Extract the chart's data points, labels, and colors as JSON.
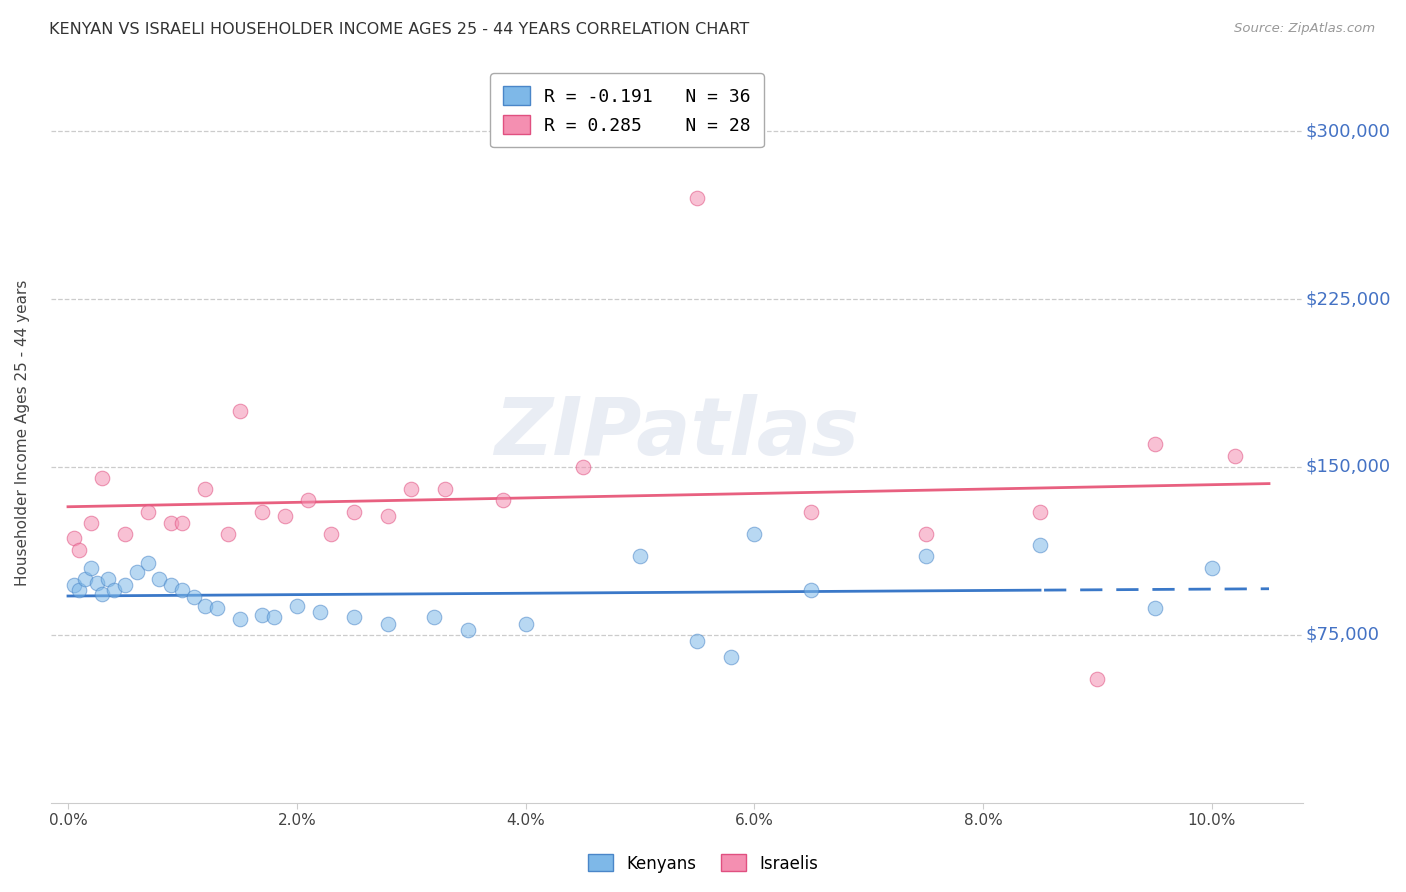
{
  "title": "KENYAN VS ISRAELI HOUSEHOLDER INCOME AGES 25 - 44 YEARS CORRELATION CHART",
  "source": "Source: ZipAtlas.com",
  "ylabel": "Householder Income Ages 25 - 44 years",
  "ytick_labels": [
    "$75,000",
    "$150,000",
    "$225,000",
    "$300,000"
  ],
  "ytick_vals": [
    75000,
    150000,
    225000,
    300000
  ],
  "xlabel_vals": [
    0.0,
    2.0,
    4.0,
    6.0,
    8.0,
    10.0
  ],
  "xlim": [
    -0.15,
    10.8
  ],
  "ylim": [
    0,
    330000
  ],
  "kenyan_color": "#7eb8e8",
  "israeli_color": "#f48fb1",
  "kenyan_edge": "#4a86c8",
  "israeli_edge": "#e05080",
  "trend_kenyan_color": "#3a78c8",
  "trend_israeli_color": "#e86080",
  "watermark": "ZIPatlas",
  "legend_line1": "R = -0.191   N = 36",
  "legend_line2": "R = 0.285    N = 28",
  "marker_size": 110,
  "alpha": 0.55,
  "kenyan_x": [
    0.05,
    0.1,
    0.15,
    0.2,
    0.25,
    0.3,
    0.35,
    0.4,
    0.5,
    0.6,
    0.7,
    0.8,
    0.9,
    1.0,
    1.1,
    1.2,
    1.3,
    1.5,
    1.7,
    1.8,
    2.0,
    2.2,
    2.5,
    2.8,
    3.2,
    3.5,
    4.0,
    5.0,
    5.5,
    5.8,
    6.0,
    6.5,
    7.5,
    8.5,
    9.5,
    10.0
  ],
  "kenyan_y": [
    97000,
    95000,
    100000,
    105000,
    98000,
    93000,
    100000,
    95000,
    97000,
    103000,
    107000,
    100000,
    97000,
    95000,
    92000,
    88000,
    87000,
    82000,
    84000,
    83000,
    88000,
    85000,
    83000,
    80000,
    83000,
    77000,
    80000,
    110000,
    72000,
    65000,
    120000,
    95000,
    110000,
    115000,
    87000,
    105000
  ],
  "israeli_x": [
    0.05,
    0.1,
    0.2,
    0.3,
    0.5,
    0.7,
    0.9,
    1.0,
    1.2,
    1.4,
    1.5,
    1.7,
    1.9,
    2.1,
    2.3,
    2.5,
    2.8,
    3.0,
    3.3,
    3.8,
    4.5,
    5.5,
    6.5,
    7.5,
    8.5,
    9.0,
    9.5,
    10.2
  ],
  "israeli_y": [
    118000,
    113000,
    125000,
    145000,
    120000,
    130000,
    125000,
    125000,
    140000,
    120000,
    175000,
    130000,
    128000,
    135000,
    120000,
    130000,
    128000,
    140000,
    140000,
    135000,
    150000,
    270000,
    130000,
    120000,
    130000,
    55000,
    160000,
    155000
  ]
}
